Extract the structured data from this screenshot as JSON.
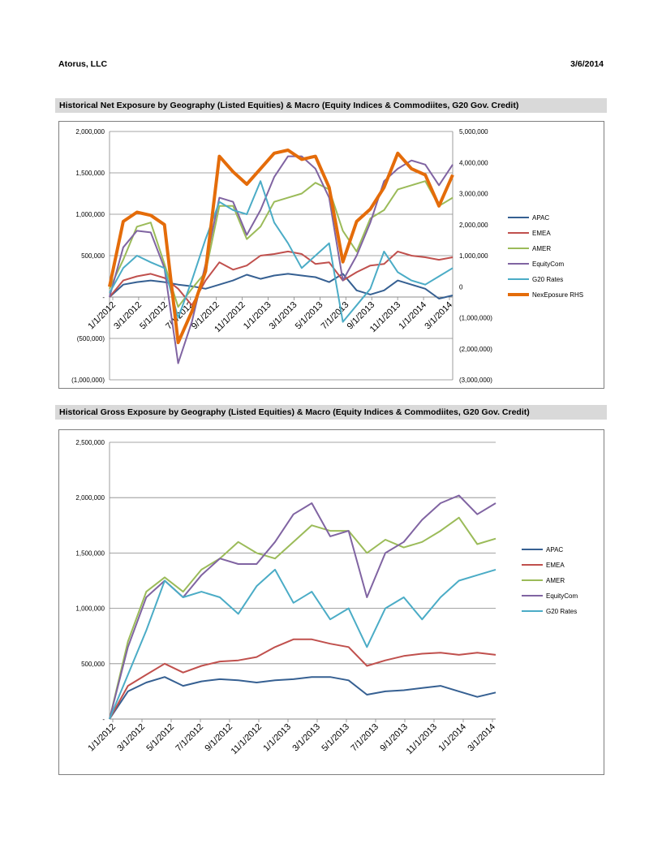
{
  "header": {
    "company": "Atorus, LLC",
    "date": "3/6/2014"
  },
  "colors": {
    "APAC": "#366092",
    "EMEA": "#c0504d",
    "AMER": "#9bbb59",
    "EquityCom": "#8064a2",
    "G20 Rates": "#4bacc6",
    "NexEposure RHS": "#e46c0a",
    "grid": "#868686",
    "section_bg": "#d9d9d9"
  },
  "chart_data": [
    {
      "type": "line",
      "title": "Historical Net Exposure by Geography (Listed Equities) & Macro (Equity Indices & Commodiites, G20 Gov. Credit)",
      "x_tick_labels": [
        "1/1/2012",
        "3/1/2012",
        "5/1/2012",
        "7/1/2012",
        "9/1/2012",
        "11/1/2012",
        "1/1/2013",
        "3/1/2013",
        "5/1/2013",
        "7/1/2013",
        "9/1/2013",
        "11/1/2013",
        "1/1/2014",
        "3/1/2014"
      ],
      "y_tick_labels": [
        "2,000,000",
        "1,500,000",
        "1,000,000",
        "500,000",
        "-",
        "(500,000)",
        "(1,000,000)"
      ],
      "y2_tick_labels": [
        "5,000,000",
        "4,000,000",
        "3,000,000",
        "2,000,000",
        "1,000,000",
        "0",
        "(1,000,000)",
        "(2,000,000)",
        "(3,000,000)"
      ],
      "ylim": [
        -1000000,
        2000000
      ],
      "y2lim": [
        -3000000,
        5000000
      ],
      "grid": true,
      "legend_position": "right",
      "series": [
        {
          "name": "APAC",
          "axis": "left",
          "color": "#366092",
          "values": [
            0,
            150000,
            180000,
            200000,
            180000,
            150000,
            130000,
            100000,
            150000,
            200000,
            270000,
            220000,
            260000,
            280000,
            260000,
            240000,
            180000,
            280000,
            80000,
            30000,
            80000,
            200000,
            150000,
            100000,
            -20000,
            20000
          ]
        },
        {
          "name": "EMEA",
          "axis": "left",
          "color": "#c0504d",
          "values": [
            0,
            200000,
            250000,
            280000,
            230000,
            100000,
            -100000,
            200000,
            420000,
            330000,
            380000,
            500000,
            520000,
            550000,
            520000,
            400000,
            420000,
            200000,
            300000,
            380000,
            400000,
            550000,
            500000,
            480000,
            450000,
            480000
          ]
        },
        {
          "name": "AMER",
          "axis": "left",
          "color": "#9bbb59",
          "values": [
            100000,
            450000,
            850000,
            900000,
            400000,
            -120000,
            100000,
            300000,
            1100000,
            1100000,
            700000,
            850000,
            1150000,
            1200000,
            1250000,
            1380000,
            1300000,
            800000,
            550000,
            950000,
            1050000,
            1300000,
            1350000,
            1400000,
            1100000,
            1200000
          ]
        },
        {
          "name": "EquityCom",
          "axis": "left",
          "color": "#8064a2",
          "values": [
            0,
            600000,
            800000,
            780000,
            350000,
            -800000,
            -300000,
            400000,
            1200000,
            1150000,
            750000,
            1050000,
            1450000,
            1700000,
            1700000,
            1550000,
            1200000,
            200000,
            500000,
            900000,
            1400000,
            1550000,
            1650000,
            1600000,
            1350000,
            1600000
          ]
        },
        {
          "name": "G20 Rates",
          "axis": "left",
          "color": "#4bacc6",
          "values": [
            50000,
            350000,
            500000,
            420000,
            350000,
            -250000,
            200000,
            700000,
            1150000,
            1050000,
            1000000,
            1400000,
            900000,
            650000,
            350000,
            500000,
            650000,
            -300000,
            -100000,
            100000,
            550000,
            300000,
            200000,
            150000,
            250000,
            350000
          ]
        },
        {
          "name": "NexEposure RHS",
          "axis": "right",
          "color": "#e46c0a",
          "values": [
            0,
            2100000,
            2400000,
            2300000,
            2000000,
            -1800000,
            -800000,
            500000,
            4200000,
            3700000,
            3300000,
            3800000,
            4300000,
            4400000,
            4100000,
            4200000,
            3200000,
            800000,
            2100000,
            2500000,
            3200000,
            4300000,
            3800000,
            3600000,
            2600000,
            3600000
          ]
        }
      ]
    },
    {
      "type": "line",
      "title": "Historical Gross Exposure by Geography (Listed Equities) & Macro (Equity Indices & Commodiites, G20 Gov. Credit)",
      "x_tick_labels": [
        "1/1/2012",
        "3/1/2012",
        "5/1/2012",
        "7/1/2012",
        "9/1/2012",
        "11/1/2012",
        "1/1/2013",
        "3/1/2013",
        "5/1/2013",
        "7/1/2013",
        "9/1/2013",
        "11/1/2013",
        "1/1/2014",
        "3/1/2014"
      ],
      "y_tick_labels": [
        "2,500,000",
        "2,000,000",
        "1,500,000",
        "1,000,000",
        "500,000",
        "-"
      ],
      "ylim": [
        0,
        2500000
      ],
      "grid": true,
      "legend_position": "right",
      "series": [
        {
          "name": "APAC",
          "color": "#366092",
          "values": [
            0,
            250000,
            330000,
            380000,
            300000,
            340000,
            360000,
            350000,
            330000,
            350000,
            360000,
            380000,
            380000,
            350000,
            220000,
            250000,
            260000,
            280000,
            300000,
            250000,
            200000,
            240000
          ]
        },
        {
          "name": "EMEA",
          "color": "#c0504d",
          "values": [
            0,
            300000,
            400000,
            500000,
            420000,
            480000,
            520000,
            530000,
            560000,
            650000,
            720000,
            720000,
            680000,
            650000,
            480000,
            530000,
            570000,
            590000,
            600000,
            580000,
            600000,
            580000
          ]
        },
        {
          "name": "AMER",
          "color": "#9bbb59",
          "values": [
            0,
            700000,
            1150000,
            1280000,
            1150000,
            1350000,
            1450000,
            1600000,
            1500000,
            1450000,
            1600000,
            1750000,
            1700000,
            1700000,
            1500000,
            1620000,
            1550000,
            1600000,
            1700000,
            1820000,
            1580000,
            1630000
          ]
        },
        {
          "name": "EquityCom",
          "color": "#8064a2",
          "values": [
            0,
            650000,
            1100000,
            1250000,
            1100000,
            1300000,
            1450000,
            1400000,
            1400000,
            1600000,
            1850000,
            1950000,
            1650000,
            1700000,
            1100000,
            1500000,
            1600000,
            1800000,
            1950000,
            2020000,
            1850000,
            1950000
          ]
        },
        {
          "name": "G20 Rates",
          "color": "#4bacc6",
          "values": [
            0,
            400000,
            800000,
            1250000,
            1100000,
            1150000,
            1100000,
            950000,
            1200000,
            1350000,
            1050000,
            1150000,
            900000,
            1000000,
            650000,
            1000000,
            1100000,
            900000,
            1100000,
            1250000,
            1300000,
            1350000
          ]
        }
      ]
    }
  ]
}
